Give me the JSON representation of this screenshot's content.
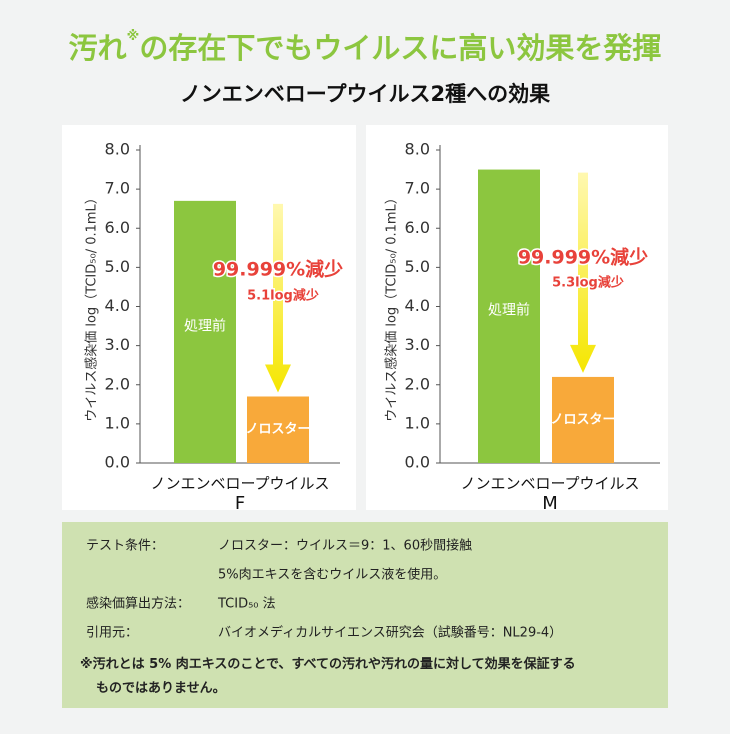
{
  "header": {
    "title_a": "汚れ",
    "title_mark": "※",
    "title_b": "の存在下でもウイルスに高い効果を発揮",
    "subtitle": "ノンエンベロープウイルス2種への効果"
  },
  "chart_data": [
    {
      "type": "bar",
      "ylabel": "ウイルス感染価 log（TCID₅₀/ 0.1mL）",
      "xlabel": "ノンエンベロープウイルス",
      "virus": "F",
      "categories": [
        "処理前",
        "ノロスター"
      ],
      "values": [
        6.7,
        1.7
      ],
      "colors": [
        "#8cc63f",
        "#f8a93a"
      ],
      "annotation": "99.999%減少",
      "annotation_sub": "5.1log減少",
      "ylim": [
        0,
        8
      ],
      "yticks": [
        {
          "value": 0,
          "label": "0.0"
        },
        {
          "value": 1,
          "label": "1.0"
        },
        {
          "value": 2,
          "label": "2.0"
        },
        {
          "value": 3,
          "label": "3.0"
        },
        {
          "value": 4,
          "label": "4.0"
        },
        {
          "value": 5,
          "label": "5.0"
        },
        {
          "value": 6,
          "label": "6.0"
        },
        {
          "value": 7,
          "label": "7.0"
        },
        {
          "value": 8,
          "label": "8.0"
        }
      ]
    },
    {
      "type": "bar",
      "ylabel": "ウイルス感染価 log（TCID₅₀/ 0.1mL）",
      "xlabel": "ノンエンベロープウイルス",
      "virus": "M",
      "categories": [
        "処理前",
        "ノロスター"
      ],
      "values": [
        7.5,
        2.2
      ],
      "colors": [
        "#8cc63f",
        "#f8a93a"
      ],
      "annotation": "99.999%減少",
      "annotation_sub": "5.3log減少",
      "ylim": [
        0,
        8
      ],
      "yticks": [
        {
          "value": 0,
          "label": "0.0"
        },
        {
          "value": 1,
          "label": "1.0"
        },
        {
          "value": 2,
          "label": "2.0"
        },
        {
          "value": 3,
          "label": "3.0"
        },
        {
          "value": 4,
          "label": "4.0"
        },
        {
          "value": 5,
          "label": "5.0"
        },
        {
          "value": 6,
          "label": "6.0"
        },
        {
          "value": 7,
          "label": "7.0"
        },
        {
          "value": 8,
          "label": "8.0"
        }
      ]
    }
  ],
  "notes": {
    "rows": [
      [
        "テスト条件：",
        "ノロスター：ウイルス＝9：1、60秒間接触"
      ],
      [
        "",
        "5%肉エキスを含むウイルス液を使用。"
      ],
      [
        "感染価算出方法：",
        "TCID₅₀ 法"
      ],
      [
        "引用元：",
        "バイオメディカルサイエンス研究会（試験番号：NL29-4）"
      ]
    ],
    "footnote": "※汚れとは 5% 肉エキスのことで、すべての汚れや汚れの量に対して効果を保証するものではありません。"
  }
}
